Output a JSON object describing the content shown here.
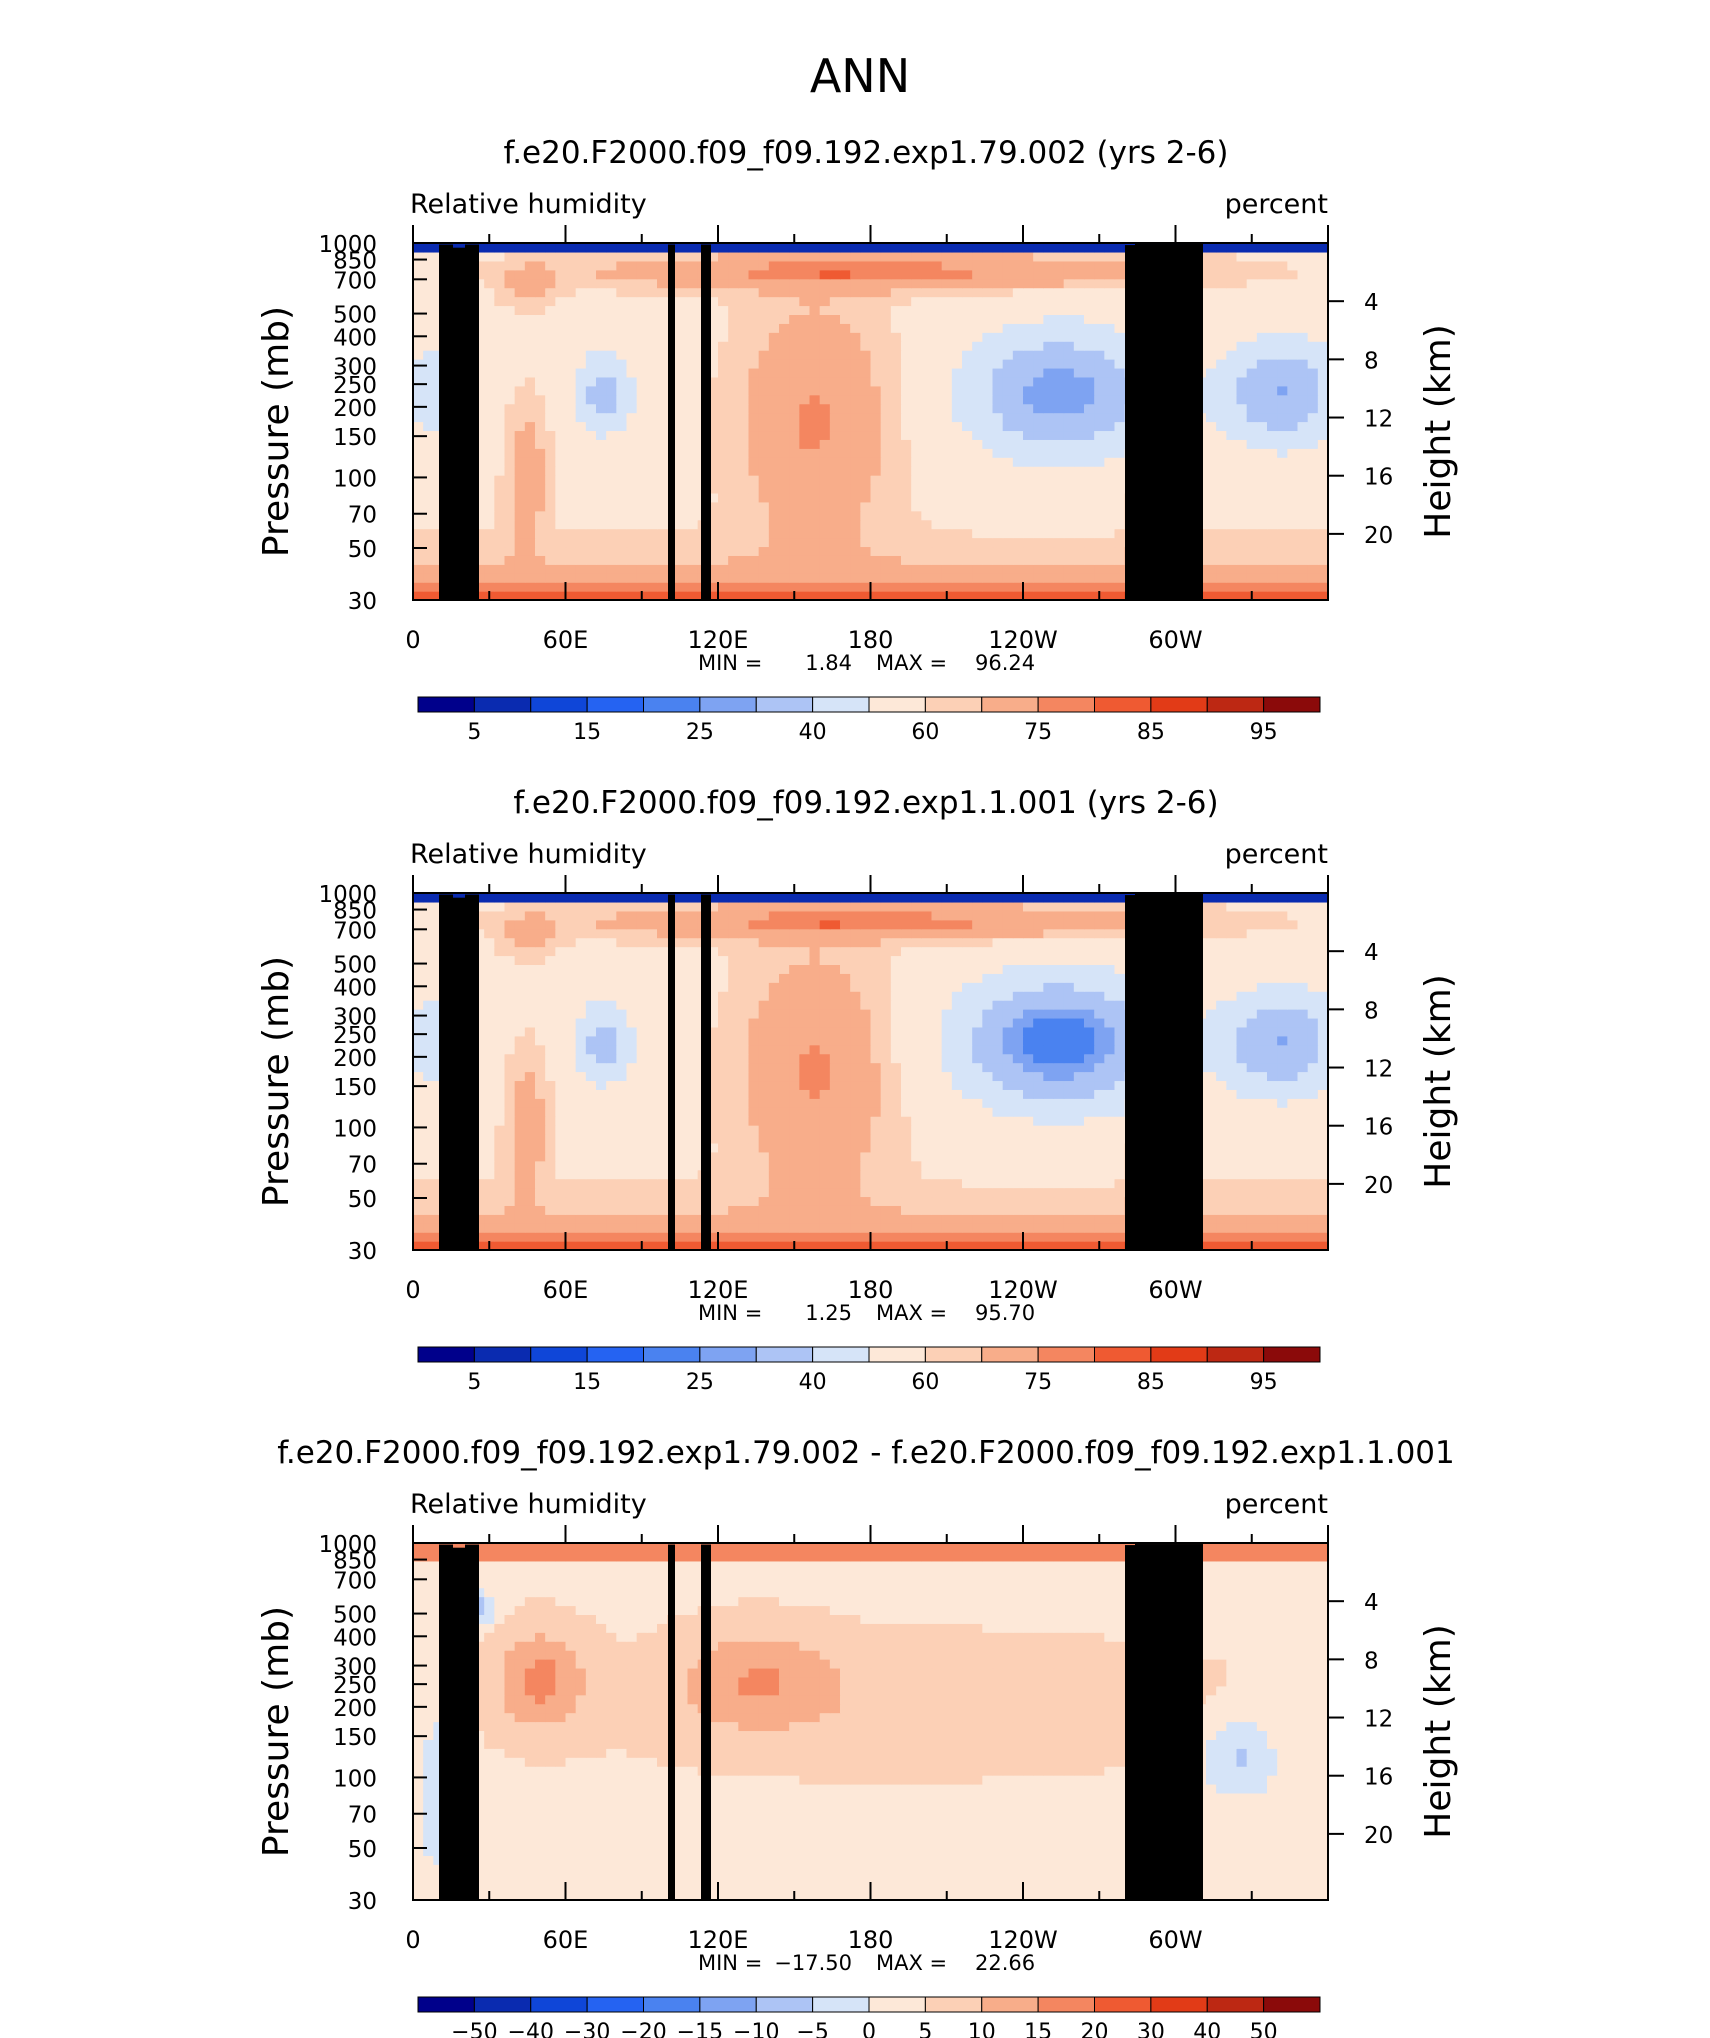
{
  "page_title": "ANN",
  "colors": {
    "rh_levels": [
      "#00008b",
      "#0a2bb0",
      "#0f46d8",
      "#2563f2",
      "#4a82f0",
      "#7ea3f2",
      "#adc4f5",
      "#d6e4f8",
      "#fde8d8",
      "#fcd0b6",
      "#f8ad8a",
      "#f48660",
      "#ef5a32",
      "#e23b17",
      "#bd2813",
      "#8b0a0a"
    ],
    "diff_levels": [
      "#00008b",
      "#0a2bb0",
      "#0f46d8",
      "#2563f2",
      "#4a82f0",
      "#7ea3f2",
      "#adc4f5",
      "#d6e4f8",
      "#fde8d8",
      "#fcd0b6",
      "#f8ad8a",
      "#f48660",
      "#ef5a32",
      "#e23b17",
      "#bd2813",
      "#8b0a0a"
    ],
    "topography": "#000000"
  },
  "chart_data": [
    {
      "type": "heatmap",
      "title": "f.e20.F2000.f09_f09.192.exp1.79.002 (yrs 2-6)",
      "left_label": "Relative humidity",
      "right_label": "percent",
      "ylabel": "Pressure (mb)",
      "ylabel_right": "Height (km)",
      "x_ticks": [
        "0",
        "60E",
        "120E",
        "180",
        "120W",
        "60W"
      ],
      "y_ticks": [
        "30",
        "50",
        "70",
        "100",
        "150",
        "200",
        "250",
        "300",
        "400",
        "500",
        "700",
        "850",
        "1000"
      ],
      "height_ticks": [
        "20",
        "16",
        "12",
        "8",
        "4"
      ],
      "min_label": "MIN =",
      "min_value": "1.84",
      "max_label": "MAX =",
      "max_value": "96.24",
      "colorbar_labels": [
        "5",
        "15",
        "25",
        "40",
        "60",
        "75",
        "85",
        "95"
      ],
      "field": "rh",
      "variant": 0
    },
    {
      "type": "heatmap",
      "title": "f.e20.F2000.f09_f09.192.exp1.1.001 (yrs 2-6)",
      "left_label": "Relative humidity",
      "right_label": "percent",
      "ylabel": "Pressure (mb)",
      "ylabel_right": "Height (km)",
      "x_ticks": [
        "0",
        "60E",
        "120E",
        "180",
        "120W",
        "60W"
      ],
      "y_ticks": [
        "30",
        "50",
        "70",
        "100",
        "150",
        "200",
        "250",
        "300",
        "400",
        "500",
        "700",
        "850",
        "1000"
      ],
      "height_ticks": [
        "20",
        "16",
        "12",
        "8",
        "4"
      ],
      "min_label": "MIN =",
      "min_value": "1.25",
      "max_label": "MAX =",
      "max_value": "95.70",
      "colorbar_labels": [
        "5",
        "15",
        "25",
        "40",
        "60",
        "75",
        "85",
        "95"
      ],
      "field": "rh",
      "variant": 1
    },
    {
      "type": "heatmap",
      "title": "f.e20.F2000.f09_f09.192.exp1.79.002 - f.e20.F2000.f09_f09.192.exp1.1.001",
      "left_label": "Relative humidity",
      "right_label": "percent",
      "ylabel": "Pressure (mb)",
      "ylabel_right": "Height (km)",
      "x_ticks": [
        "0",
        "60E",
        "120E",
        "180",
        "120W",
        "60W"
      ],
      "y_ticks": [
        "30",
        "50",
        "70",
        "100",
        "150",
        "200",
        "250",
        "300",
        "400",
        "500",
        "700",
        "850",
        "1000"
      ],
      "height_ticks": [
        "20",
        "16",
        "12",
        "8",
        "4"
      ],
      "min_label": "MIN =",
      "min_value": "−17.50",
      "max_label": "MAX =",
      "max_value": "22.66",
      "colorbar_labels": [
        "−50",
        "−40",
        "−30",
        "−20",
        "−15",
        "−10",
        "−5",
        "0",
        "5",
        "10",
        "15",
        "20",
        "30",
        "40",
        "50"
      ],
      "field": "diff",
      "variant": 2
    }
  ]
}
